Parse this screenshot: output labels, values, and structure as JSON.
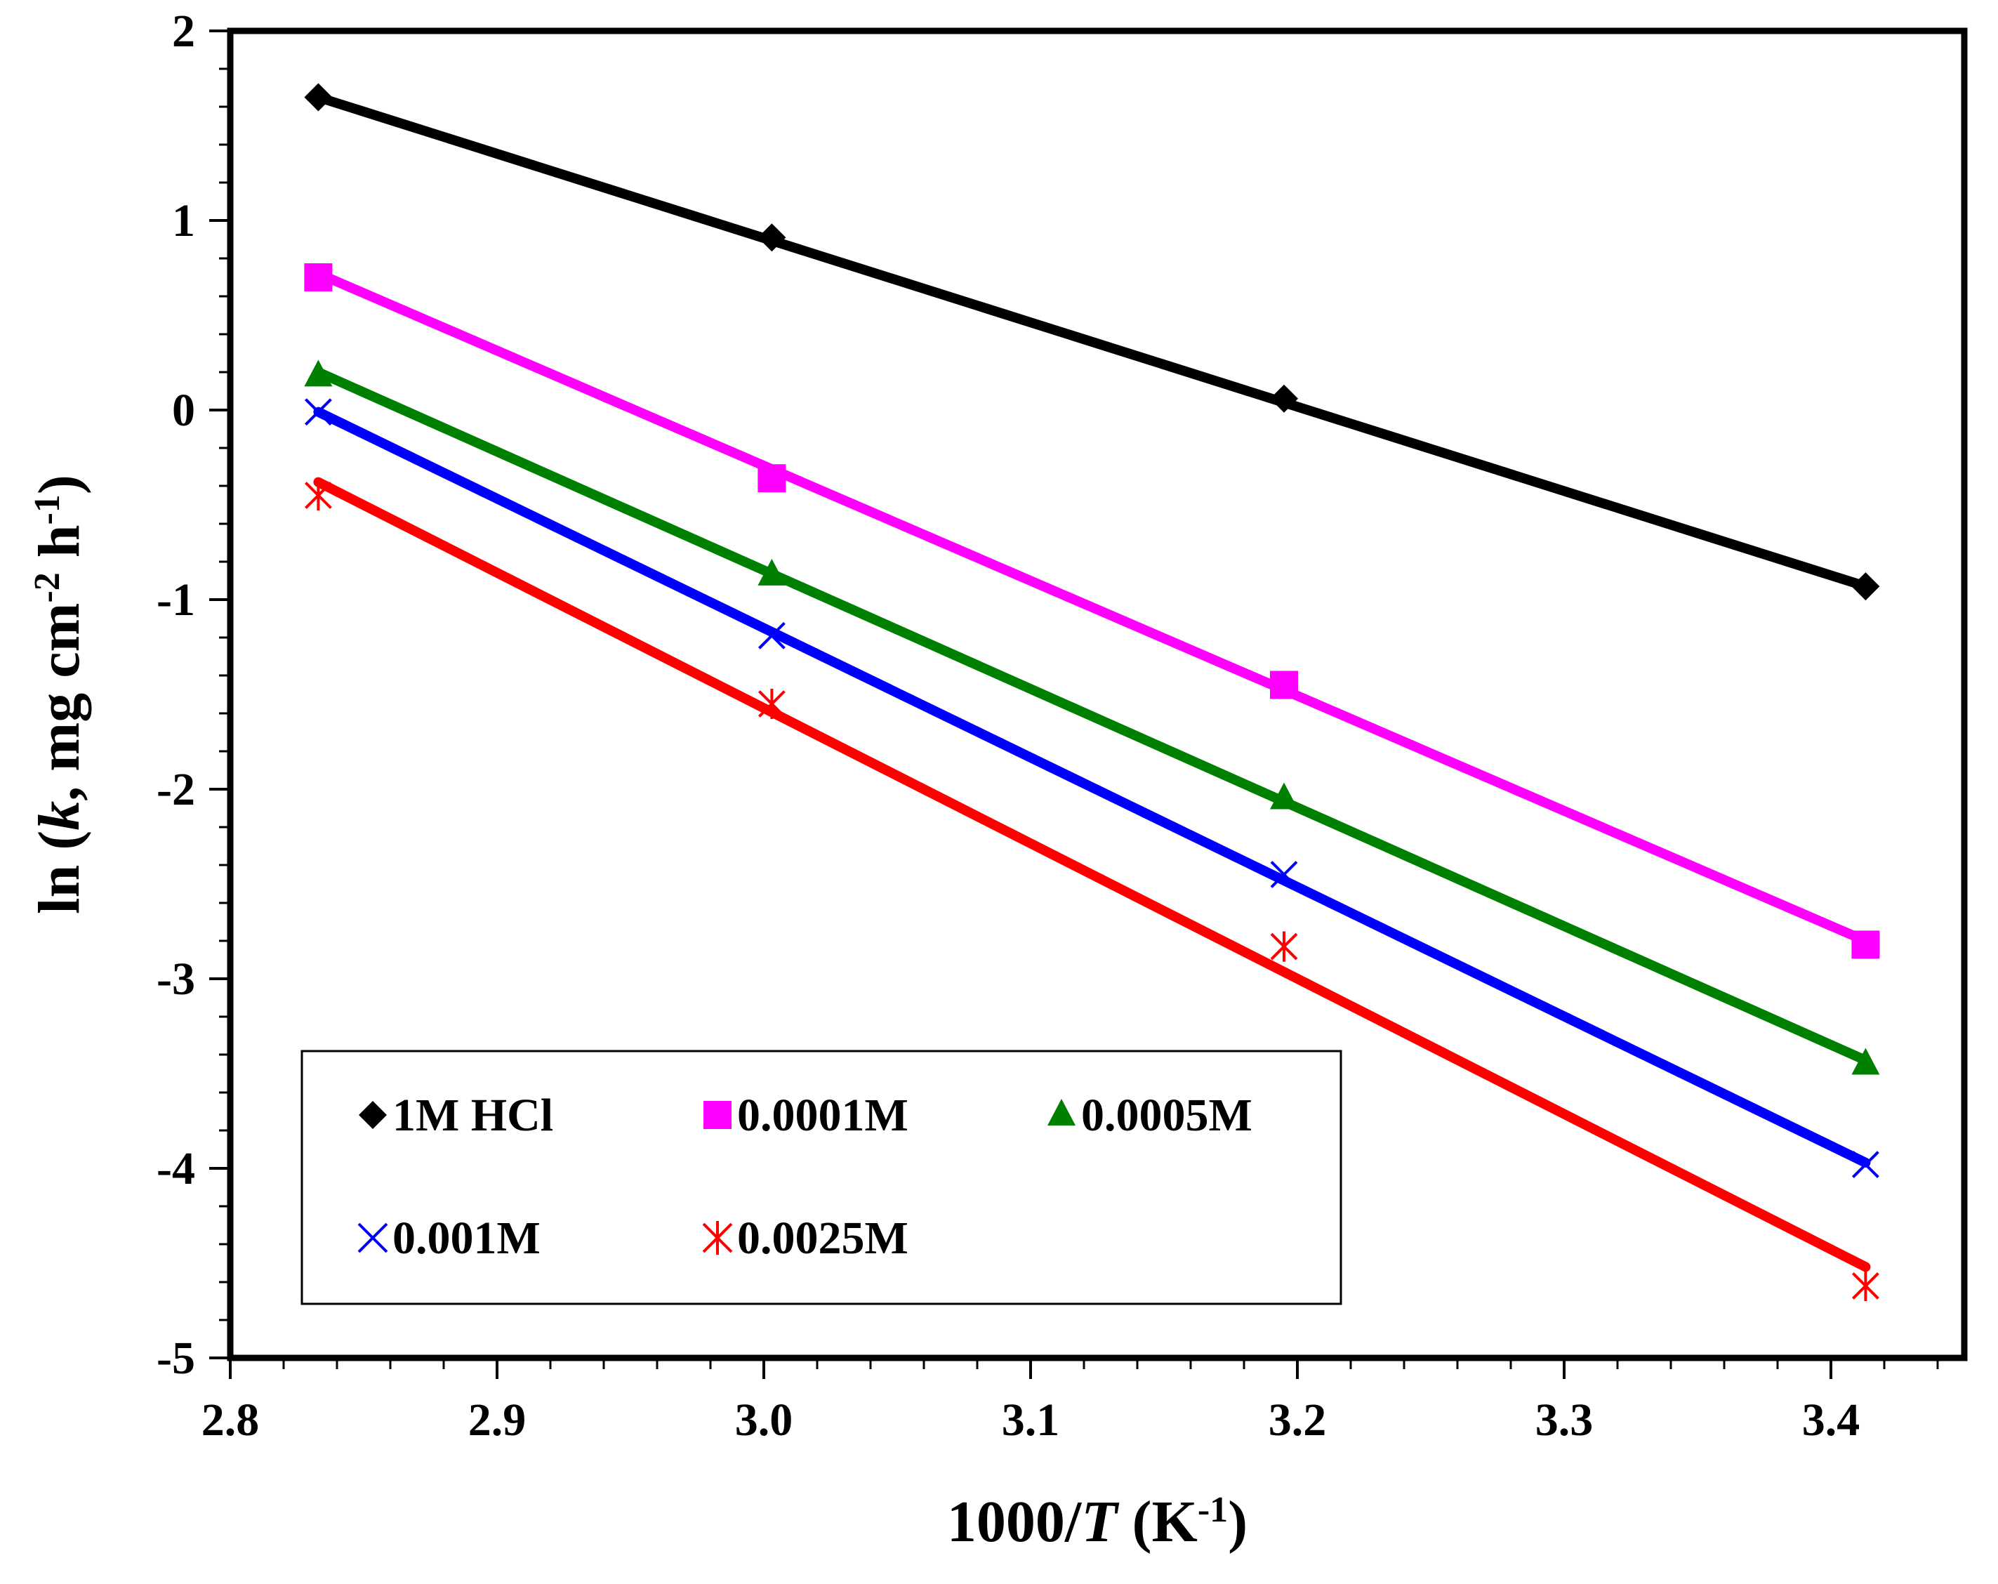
{
  "chart_data": {
    "type": "scatter",
    "title": "",
    "xlabel": {
      "pre": "1000/",
      "italic": "T",
      "unit": " (K",
      "sup": "-1",
      "post": ")"
    },
    "ylabel": {
      "pre": "ln (",
      "italic": "k",
      "mid1": ", mg cm",
      "sup1": "-2",
      "mid2": " h",
      "sup2": "-1",
      "post": ")"
    },
    "xlim": [
      2.8,
      3.45
    ],
    "ylim": [
      -5,
      2
    ],
    "x_ticks": [
      "2.8",
      "2.9",
      "3.0",
      "3.1",
      "3.2",
      "3.3",
      "3.4"
    ],
    "y_ticks": [
      "-5",
      "-4",
      "-3",
      "-2",
      "-1",
      "0",
      "1",
      "2"
    ],
    "grid": false,
    "legend_position": "bottom-left",
    "series": [
      {
        "name": "1M HCl",
        "color": "#000000",
        "marker": "diamond",
        "x": [
          2.833,
          3.003,
          3.195,
          3.413
        ],
        "y": [
          1.65,
          0.91,
          0.06,
          -0.93
        ],
        "fit": {
          "x": [
            2.833,
            3.413
          ],
          "y": [
            1.65,
            -0.93
          ]
        }
      },
      {
        "name": "0.0001M",
        "color": "#ff00ff",
        "marker": "square",
        "x": [
          2.833,
          3.003,
          3.195,
          3.413
        ],
        "y": [
          0.7,
          -0.36,
          -1.45,
          -2.82
        ],
        "fit": {
          "x": [
            2.833,
            3.413
          ],
          "y": [
            0.72,
            -2.8
          ]
        }
      },
      {
        "name": "0.0005M",
        "color": "#008000",
        "marker": "triangle",
        "x": [
          2.833,
          3.003,
          3.195,
          3.413
        ],
        "y": [
          0.18,
          -0.87,
          -2.05,
          -3.45
        ],
        "fit": {
          "x": [
            2.833,
            3.413
          ],
          "y": [
            0.2,
            -3.43
          ]
        }
      },
      {
        "name": "0.001M",
        "color": "#0000ff",
        "marker": "x",
        "x": [
          2.833,
          3.003,
          3.195,
          3.413
        ],
        "y": [
          -0.01,
          -1.19,
          -2.45,
          -3.98
        ],
        "fit": {
          "x": [
            2.833,
            3.413
          ],
          "y": [
            -0.01,
            -3.97
          ]
        }
      },
      {
        "name": "0.0025M",
        "color": "#ff0000",
        "marker": "asterisk",
        "x": [
          2.833,
          3.003,
          3.195,
          3.413
        ],
        "y": [
          -0.45,
          -1.55,
          -2.83,
          -4.62
        ],
        "fit": {
          "x": [
            2.833,
            3.413
          ],
          "y": [
            -0.38,
            -4.52
          ]
        }
      }
    ]
  }
}
